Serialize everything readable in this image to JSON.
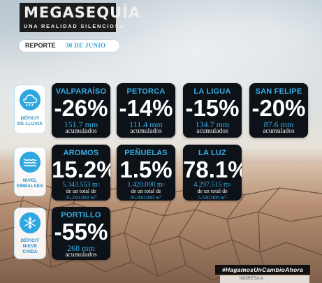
{
  "header": {
    "title": "MEGASEQUÍA",
    "subtitle": "UNA REALIDAD SILENCIOSA"
  },
  "report": {
    "label": "REPORTE",
    "date": "30 DE JUNIO"
  },
  "sections": [
    {
      "icon": "rain-cloud-icon",
      "label_line1": "DÉFICIT",
      "label_line2": "DE LLUVIA"
    },
    {
      "icon": "water-waves-icon",
      "label_line1": "NIVEL",
      "label_line2": "EMBALSES"
    },
    {
      "icon": "snowflake-icon",
      "label_line1": "DÉFICIT",
      "label_line2": "NIEVE",
      "label_line3": "CAÍDA"
    }
  ],
  "rain_cards": [
    {
      "name": "VALPARAÍSO",
      "value": "-26%",
      "amount": "151.7 mm",
      "note": "acumulados"
    },
    {
      "name": "PETORCA",
      "value": "-14%",
      "amount": "111.4 mm",
      "note": "acumulados"
    },
    {
      "name": "LA LIGUA",
      "value": "-15%",
      "amount": "134.7 mm",
      "note": "acumulados"
    },
    {
      "name": "SAN FELIPE",
      "value": "-20%",
      "amount": "87.6 mm",
      "note": "acumulados"
    }
  ],
  "reservoir_cards": [
    {
      "name": "AROMOS",
      "value": "15.2%",
      "amount": "5.343.553 m",
      "superscript": "3",
      "note": "de un total de",
      "total": "35.250.000 m",
      "total_superscript": "3"
    },
    {
      "name": "PEÑUELAS",
      "value": "1.5%",
      "amount": "1.420.000 m",
      "superscript": "3",
      "note": "de un total de",
      "total": "95.000.000 m",
      "total_superscript": "3"
    },
    {
      "name": "LA LUZ",
      "value": "78.1%",
      "amount": "4.297.515 m",
      "superscript": "3",
      "note": "de un total de",
      "total": "5.500.000 m",
      "total_superscript": "3"
    }
  ],
  "snow_cards": [
    {
      "name": "PORTILLO",
      "value": "-55%",
      "amount": "268 mm",
      "note": "acumulados"
    }
  ],
  "footer": {
    "hashtag": "#HagamosUnCambioAhora",
    "strip": "INGRESA A"
  },
  "colors": {
    "accent_blue": "#2ea6df",
    "card_bg": "#0d1218",
    "header_bg": "#1c1c1c",
    "white": "#ffffff"
  }
}
